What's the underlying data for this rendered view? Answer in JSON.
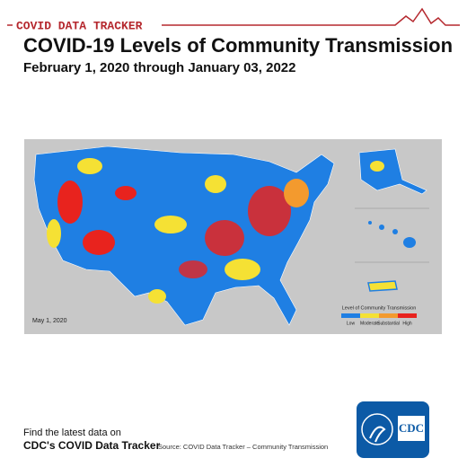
{
  "header": {
    "label": "COVID DATA TRACKER",
    "title": "COVID-19 Levels of Community Transmission",
    "subtitle": "February 1, 2020 through January 03, 2022"
  },
  "map": {
    "date": "May 1, 2020",
    "legend": {
      "title": "Level of Community Transmission",
      "items": [
        {
          "name": "Low",
          "color": "#1f7fe3"
        },
        {
          "name": "Moderate",
          "color": "#f5e134"
        },
        {
          "name": "Substantial",
          "color": "#f39a2e"
        },
        {
          "name": "High",
          "color": "#e8231e"
        }
      ]
    }
  },
  "footer": {
    "line1": "Find the latest data on",
    "line2": "CDC's COVID Data Tracker",
    "source": "Source: COVID Data Tracker – Community Transmission",
    "logo": "CDC"
  }
}
